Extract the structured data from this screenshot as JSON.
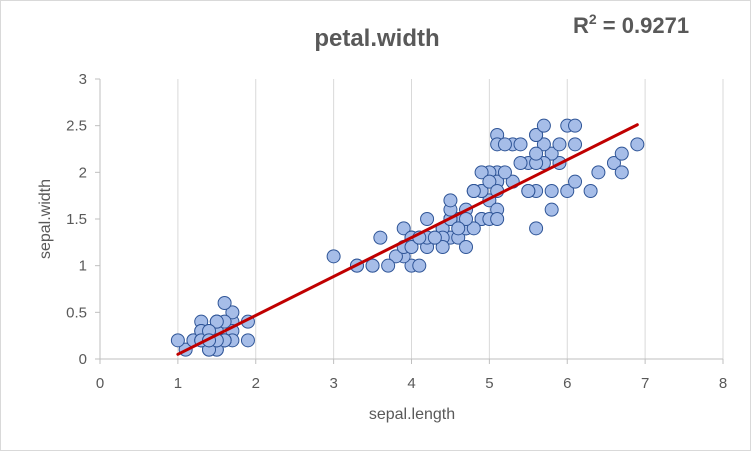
{
  "chart_data": {
    "type": "scatter",
    "title": "petal.width",
    "xlabel": "sepal.length",
    "ylabel": "sepal.width",
    "annotation": {
      "prefix": "R",
      "superscript": "2",
      "suffix": " = 0.9271"
    },
    "xlim": [
      0,
      8
    ],
    "ylim": [
      0,
      3
    ],
    "xticks": [
      0,
      1,
      2,
      3,
      4,
      5,
      6,
      7,
      8
    ],
    "yticks": [
      0,
      0.5,
      1,
      1.5,
      2,
      2.5,
      3
    ],
    "xtick_labels": [
      "0",
      "1",
      "2",
      "3",
      "4",
      "5",
      "6",
      "7",
      "8"
    ],
    "ytick_labels": [
      "0",
      "0.5",
      "1",
      "1.5",
      "2",
      "2.5",
      "3"
    ],
    "grid": "vertical",
    "legend": "none",
    "colors": {
      "marker_fill": "#a6bde8",
      "marker_stroke": "#2f5597",
      "trendline": "#c00000",
      "grid": "#d9d9d9",
      "text": "#595959"
    },
    "trendline": {
      "x": [
        1.0,
        6.9
      ],
      "y": [
        0.05,
        2.51
      ]
    },
    "points": [
      [
        1.4,
        0.2
      ],
      [
        1.4,
        0.2
      ],
      [
        1.3,
        0.2
      ],
      [
        1.5,
        0.2
      ],
      [
        1.4,
        0.2
      ],
      [
        1.7,
        0.4
      ],
      [
        1.4,
        0.3
      ],
      [
        1.5,
        0.2
      ],
      [
        1.4,
        0.2
      ],
      [
        1.5,
        0.1
      ],
      [
        1.5,
        0.2
      ],
      [
        1.6,
        0.2
      ],
      [
        1.4,
        0.1
      ],
      [
        1.1,
        0.1
      ],
      [
        1.2,
        0.2
      ],
      [
        1.5,
        0.4
      ],
      [
        1.3,
        0.4
      ],
      [
        1.4,
        0.3
      ],
      [
        1.7,
        0.3
      ],
      [
        1.5,
        0.3
      ],
      [
        1.7,
        0.2
      ],
      [
        1.5,
        0.4
      ],
      [
        1.0,
        0.2
      ],
      [
        1.7,
        0.5
      ],
      [
        1.9,
        0.2
      ],
      [
        1.6,
        0.2
      ],
      [
        1.6,
        0.4
      ],
      [
        1.5,
        0.2
      ],
      [
        1.4,
        0.2
      ],
      [
        1.6,
        0.2
      ],
      [
        1.6,
        0.2
      ],
      [
        1.5,
        0.4
      ],
      [
        1.5,
        0.1
      ],
      [
        1.4,
        0.2
      ],
      [
        1.5,
        0.2
      ],
      [
        1.2,
        0.2
      ],
      [
        1.3,
        0.2
      ],
      [
        1.4,
        0.1
      ],
      [
        1.3,
        0.2
      ],
      [
        1.5,
        0.2
      ],
      [
        1.3,
        0.3
      ],
      [
        1.3,
        0.3
      ],
      [
        1.3,
        0.2
      ],
      [
        1.6,
        0.6
      ],
      [
        1.9,
        0.4
      ],
      [
        1.4,
        0.3
      ],
      [
        1.6,
        0.2
      ],
      [
        1.4,
        0.2
      ],
      [
        1.5,
        0.2
      ],
      [
        1.4,
        0.2
      ],
      [
        4.7,
        1.4
      ],
      [
        4.5,
        1.5
      ],
      [
        4.9,
        1.5
      ],
      [
        4.0,
        1.3
      ],
      [
        4.6,
        1.5
      ],
      [
        4.5,
        1.3
      ],
      [
        4.7,
        1.6
      ],
      [
        3.3,
        1.0
      ],
      [
        4.6,
        1.3
      ],
      [
        3.9,
        1.4
      ],
      [
        3.5,
        1.0
      ],
      [
        4.2,
        1.5
      ],
      [
        4.0,
        1.0
      ],
      [
        4.7,
        1.4
      ],
      [
        3.6,
        1.3
      ],
      [
        4.4,
        1.4
      ],
      [
        4.5,
        1.5
      ],
      [
        4.1,
        1.0
      ],
      [
        4.5,
        1.5
      ],
      [
        3.9,
        1.1
      ],
      [
        4.8,
        1.8
      ],
      [
        4.0,
        1.3
      ],
      [
        4.9,
        1.5
      ],
      [
        4.7,
        1.2
      ],
      [
        4.3,
        1.3
      ],
      [
        4.4,
        1.4
      ],
      [
        4.8,
        1.4
      ],
      [
        5.0,
        1.7
      ],
      [
        4.5,
        1.5
      ],
      [
        3.5,
        1.0
      ],
      [
        3.8,
        1.1
      ],
      [
        3.7,
        1.0
      ],
      [
        3.9,
        1.2
      ],
      [
        5.1,
        1.6
      ],
      [
        4.5,
        1.5
      ],
      [
        4.5,
        1.6
      ],
      [
        4.7,
        1.5
      ],
      [
        4.4,
        1.3
      ],
      [
        4.1,
        1.3
      ],
      [
        4.0,
        1.3
      ],
      [
        4.4,
        1.2
      ],
      [
        4.6,
        1.4
      ],
      [
        4.0,
        1.2
      ],
      [
        3.3,
        1.0
      ],
      [
        4.2,
        1.3
      ],
      [
        4.2,
        1.2
      ],
      [
        4.2,
        1.3
      ],
      [
        4.3,
        1.3
      ],
      [
        3.0,
        1.1
      ],
      [
        4.1,
        1.3
      ],
      [
        6.0,
        2.5
      ],
      [
        5.1,
        1.9
      ],
      [
        5.9,
        2.1
      ],
      [
        5.6,
        1.8
      ],
      [
        5.8,
        2.2
      ],
      [
        6.6,
        2.1
      ],
      [
        4.5,
        1.7
      ],
      [
        6.3,
        1.8
      ],
      [
        5.8,
        1.8
      ],
      [
        6.1,
        2.5
      ],
      [
        5.1,
        2.0
      ],
      [
        5.3,
        1.9
      ],
      [
        5.5,
        2.1
      ],
      [
        5.0,
        2.0
      ],
      [
        5.1,
        2.4
      ],
      [
        5.3,
        2.3
      ],
      [
        5.5,
        1.8
      ],
      [
        6.7,
        2.2
      ],
      [
        6.9,
        2.3
      ],
      [
        5.0,
        1.5
      ],
      [
        5.7,
        2.3
      ],
      [
        4.9,
        2.0
      ],
      [
        6.7,
        2.0
      ],
      [
        4.9,
        1.8
      ],
      [
        5.7,
        2.1
      ],
      [
        6.0,
        1.8
      ],
      [
        4.8,
        1.8
      ],
      [
        4.9,
        1.8
      ],
      [
        5.6,
        2.1
      ],
      [
        5.8,
        1.6
      ],
      [
        6.1,
        1.9
      ],
      [
        6.4,
        2.0
      ],
      [
        5.6,
        2.2
      ],
      [
        5.1,
        1.5
      ],
      [
        5.6,
        1.4
      ],
      [
        6.1,
        2.3
      ],
      [
        5.6,
        2.4
      ],
      [
        5.5,
        1.8
      ],
      [
        4.8,
        1.8
      ],
      [
        5.4,
        2.1
      ],
      [
        5.6,
        2.4
      ],
      [
        5.1,
        2.3
      ],
      [
        5.1,
        1.9
      ],
      [
        5.9,
        2.3
      ],
      [
        5.7,
        2.5
      ],
      [
        5.2,
        2.3
      ],
      [
        5.0,
        1.9
      ],
      [
        5.2,
        2.0
      ],
      [
        5.4,
        2.3
      ],
      [
        5.1,
        1.8
      ]
    ]
  }
}
